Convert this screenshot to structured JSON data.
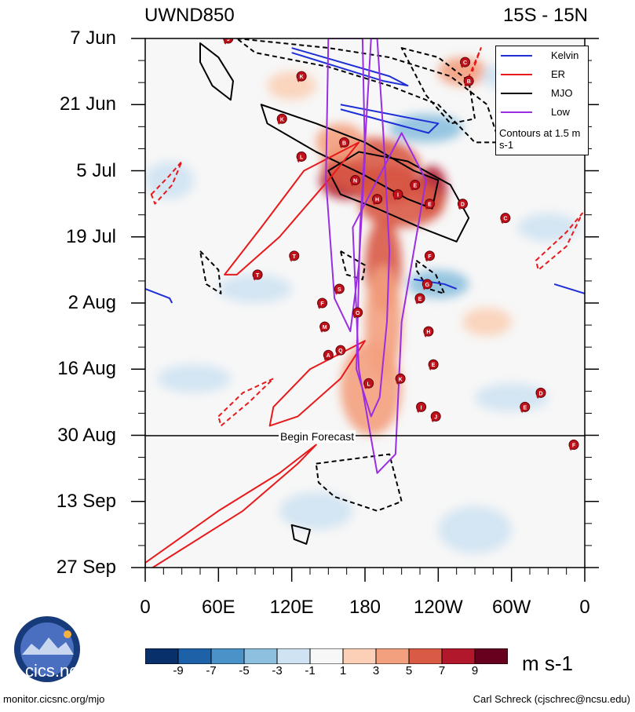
{
  "chart_data": {
    "type": "heatmap",
    "title_left": "UWND850",
    "title_right": "15S - 15N",
    "variable": "850-hPa zonal wind anomaly",
    "units": "m s-1",
    "x_axis": {
      "labels": [
        "0",
        "60E",
        "120E",
        "180",
        "120W",
        "60W",
        "0"
      ],
      "range_deg": [
        0,
        360
      ]
    },
    "y_axis": {
      "labels": [
        "7 Jun",
        "21 Jun",
        "5 Jul",
        "19 Jul",
        "2 Aug",
        "16 Aug",
        "30 Aug",
        "13 Sep",
        "27 Sep"
      ],
      "day_offsets": [
        0,
        14,
        28,
        42,
        56,
        70,
        84,
        98,
        112
      ]
    },
    "forecast_start": "30 Aug",
    "forecast_label": "Begin Forecast",
    "colorbar": {
      "ticks": [
        "-9",
        "-7",
        "-5",
        "-3",
        "-1",
        "1",
        "3",
        "5",
        "7",
        "9"
      ],
      "colors": [
        "#08306b",
        "#1d62a8",
        "#4a93c8",
        "#8cc0de",
        "#cfe3f2",
        "#f7f7f7",
        "#fbd0b7",
        "#f3a07e",
        "#d95a45",
        "#b2182b",
        "#67001f"
      ]
    },
    "legend": [
      {
        "name": "Kelvin",
        "color": "#1f2fd6"
      },
      {
        "name": "ER",
        "color": "#e8191b"
      },
      {
        "name": "MJO",
        "color": "#000000"
      },
      {
        "name": "Low",
        "color": "#9a2ee0"
      }
    ],
    "contour_note": "Contours at 1.5 m s-1",
    "anomaly_blobs": [
      {
        "lon": 165,
        "day": 30,
        "value": 8.5,
        "rlon": 22,
        "rday": 4
      },
      {
        "lon": 200,
        "day": 31,
        "value": 7.5,
        "rlon": 25,
        "rday": 4
      },
      {
        "lon": 235,
        "day": 32,
        "value": 8.0,
        "rlon": 12,
        "rday": 5
      },
      {
        "lon": 185,
        "day": 27,
        "value": 5.5,
        "rlon": 40,
        "rday": 6
      },
      {
        "lon": 210,
        "day": 35,
        "value": 6.0,
        "rlon": 35,
        "rday": 5
      },
      {
        "lon": 195,
        "day": 48,
        "value": 5.0,
        "rlon": 15,
        "rday": 10
      },
      {
        "lon": 195,
        "day": 60,
        "value": 4.0,
        "rlon": 15,
        "rday": 12
      },
      {
        "lon": 185,
        "day": 74,
        "value": 4.0,
        "rlon": 25,
        "rday": 10
      },
      {
        "lon": 160,
        "day": 22,
        "value": 3.0,
        "rlon": 20,
        "rday": 4
      },
      {
        "lon": 260,
        "day": 7,
        "value": 3.0,
        "rlon": 20,
        "rday": 3
      },
      {
        "lon": 120,
        "day": 10,
        "value": 2.0,
        "rlon": 20,
        "rday": 3
      },
      {
        "lon": 280,
        "day": 60,
        "value": 2.0,
        "rlon": 20,
        "rday": 3
      },
      {
        "lon": 230,
        "day": 19,
        "value": -4.0,
        "rlon": 30,
        "rday": 3
      },
      {
        "lon": 20,
        "day": 30,
        "value": -3.0,
        "rlon": 20,
        "rday": 4
      },
      {
        "lon": 330,
        "day": 40,
        "value": -3.0,
        "rlon": 25,
        "rday": 3
      },
      {
        "lon": 90,
        "day": 53,
        "value": -3.0,
        "rlon": 30,
        "rday": 3
      },
      {
        "lon": 240,
        "day": 52,
        "value": -3.5,
        "rlon": 25,
        "rday": 3
      },
      {
        "lon": 300,
        "day": 8,
        "value": -2.0,
        "rlon": 25,
        "rday": 3
      },
      {
        "lon": 40,
        "day": 72,
        "value": -2.0,
        "rlon": 30,
        "rday": 3
      },
      {
        "lon": 300,
        "day": 76,
        "value": -2.0,
        "rlon": 30,
        "rday": 3
      },
      {
        "lon": 140,
        "day": 100,
        "value": -2.0,
        "rlon": 30,
        "rday": 4
      },
      {
        "lon": 270,
        "day": 104,
        "value": -1.5,
        "rlon": 30,
        "rday": 5
      }
    ],
    "contours": [
      {
        "filter": "MJO",
        "style": "solid",
        "points": [
          [
            150,
            28
          ],
          [
            175,
            24
          ],
          [
            215,
            26
          ],
          [
            250,
            31
          ],
          [
            265,
            38
          ],
          [
            255,
            43
          ],
          [
            225,
            40
          ],
          [
            190,
            36
          ],
          [
            160,
            33
          ]
        ]
      },
      {
        "filter": "MJO",
        "style": "solid",
        "points": [
          [
            95,
            14
          ],
          [
            140,
            18
          ],
          [
            180,
            22
          ],
          [
            220,
            28
          ],
          [
            240,
            30
          ],
          [
            235,
            36
          ],
          [
            215,
            34
          ],
          [
            180,
            29
          ],
          [
            140,
            24
          ],
          [
            100,
            18
          ]
        ]
      },
      {
        "filter": "MJO",
        "style": "solid",
        "points": [
          [
            45,
            1
          ],
          [
            60,
            4
          ],
          [
            72,
            9
          ],
          [
            70,
            13
          ],
          [
            55,
            10
          ],
          [
            45,
            5
          ]
        ]
      },
      {
        "filter": "MJO",
        "style": "dashed",
        "points": [
          [
            75,
            0
          ],
          [
            150,
            2
          ],
          [
            200,
            4
          ],
          [
            250,
            8
          ],
          [
            280,
            14
          ],
          [
            290,
            22
          ],
          [
            270,
            22
          ],
          [
            240,
            14
          ],
          [
            200,
            10
          ],
          [
            150,
            6
          ],
          [
            90,
            3
          ]
        ]
      },
      {
        "filter": "MJO",
        "style": "dashed",
        "points": [
          [
            210,
            2
          ],
          [
            240,
            4
          ],
          [
            265,
            9
          ],
          [
            270,
            17
          ],
          [
            250,
            18
          ],
          [
            230,
            12
          ]
        ]
      },
      {
        "filter": "MJO",
        "style": "dashed",
        "points": [
          [
            45,
            45
          ],
          [
            60,
            49
          ],
          [
            62,
            54
          ],
          [
            50,
            52
          ]
        ]
      },
      {
        "filter": "MJO",
        "style": "dashed",
        "points": [
          [
            160,
            45
          ],
          [
            180,
            48
          ],
          [
            178,
            51
          ],
          [
            165,
            50
          ]
        ]
      },
      {
        "filter": "MJO",
        "style": "dashed",
        "points": [
          [
            222,
            47
          ],
          [
            238,
            50
          ],
          [
            245,
            54
          ],
          [
            232,
            53
          ],
          [
            222,
            49
          ]
        ]
      },
      {
        "filter": "MJO",
        "style": "dashed",
        "points": [
          [
            140,
            90
          ],
          [
            200,
            88
          ],
          [
            210,
            98
          ],
          [
            190,
            100
          ],
          [
            155,
            97
          ],
          [
            142,
            94
          ]
        ]
      },
      {
        "filter": "MJO",
        "style": "solid",
        "points": [
          [
            120,
            103
          ],
          [
            135,
            104
          ],
          [
            132,
            107
          ],
          [
            122,
            106
          ]
        ]
      },
      {
        "filter": "ER",
        "style": "solid",
        "points": [
          [
            65,
            50
          ],
          [
            95,
            40
          ],
          [
            130,
            28
          ],
          [
            175,
            22
          ],
          [
            150,
            30
          ],
          [
            110,
            42
          ],
          [
            75,
            50
          ]
        ]
      },
      {
        "filter": "ER",
        "style": "solid",
        "points": [
          [
            105,
            78
          ],
          [
            135,
            70
          ],
          [
            180,
            64
          ],
          [
            160,
            72
          ],
          [
            125,
            80
          ],
          [
            102,
            82
          ]
        ]
      },
      {
        "filter": "ER",
        "style": "solid",
        "points": [
          [
            0,
            111
          ],
          [
            60,
            100
          ],
          [
            110,
            92
          ],
          [
            140,
            86
          ],
          [
            125,
            90
          ],
          [
            80,
            100
          ],
          [
            0,
            113
          ]
        ]
      },
      {
        "filter": "ER",
        "style": "dashed",
        "points": [
          [
            5,
            33
          ],
          [
            20,
            29
          ],
          [
            30,
            26
          ],
          [
            22,
            31
          ],
          [
            8,
            35
          ]
        ]
      },
      {
        "filter": "ER",
        "style": "dashed",
        "points": [
          [
            60,
            80
          ],
          [
            80,
            75
          ],
          [
            105,
            72
          ],
          [
            85,
            77
          ],
          [
            62,
            82
          ]
        ]
      },
      {
        "filter": "ER",
        "style": "dashed",
        "points": [
          [
            320,
            47
          ],
          [
            345,
            41
          ],
          [
            358,
            37
          ],
          [
            345,
            44
          ],
          [
            322,
            49
          ]
        ]
      },
      {
        "filter": "ER",
        "style": "dashed",
        "points": [
          [
            262,
            10
          ],
          [
            275,
            2
          ],
          [
            268,
            7
          ]
        ]
      },
      {
        "filter": "Kelvin",
        "style": "solid",
        "points": [
          [
            120,
            2
          ],
          [
            200,
            8
          ],
          [
            215,
            10
          ],
          [
            195,
            9
          ],
          [
            120,
            3
          ]
        ]
      },
      {
        "filter": "Kelvin",
        "style": "solid",
        "points": [
          [
            160,
            14
          ],
          [
            240,
            18
          ],
          [
            232,
            20
          ],
          [
            160,
            15
          ]
        ]
      },
      {
        "filter": "Kelvin",
        "style": "solid",
        "points": [
          [
            0,
            53
          ],
          [
            20,
            55
          ],
          [
            22,
            56
          ]
        ]
      },
      {
        "filter": "Kelvin",
        "style": "solid",
        "points": [
          [
            335,
            52
          ],
          [
            360,
            54
          ]
        ]
      },
      {
        "filter": "Kelvin",
        "style": "solid",
        "points": [
          [
            220,
            51
          ],
          [
            245,
            52
          ],
          [
            255,
            53
          ]
        ]
      },
      {
        "filter": "Low",
        "style": "solid",
        "points": [
          [
            185,
            0
          ],
          [
            176,
            40
          ],
          [
            173,
            70
          ],
          [
            185,
            80
          ],
          [
            192,
            76
          ],
          [
            198,
            60
          ],
          [
            200,
            45
          ],
          [
            195,
            20
          ],
          [
            190,
            0
          ]
        ]
      },
      {
        "filter": "Low",
        "style": "solid",
        "points": [
          [
            150,
            0
          ],
          [
            148,
            30
          ],
          [
            155,
            55
          ],
          [
            168,
            62
          ],
          [
            175,
            48
          ],
          [
            180,
            25
          ],
          [
            178,
            0
          ]
        ]
      },
      {
        "filter": "Low",
        "style": "solid",
        "points": [
          [
            170,
            40
          ],
          [
            175,
            70
          ],
          [
            190,
            92
          ],
          [
            205,
            88
          ],
          [
            210,
            60
          ],
          [
            230,
            30
          ],
          [
            210,
            20
          ],
          [
            190,
            30
          ]
        ]
      }
    ],
    "storms": [
      {
        "lon": 68,
        "day": 0,
        "label": "J"
      },
      {
        "lon": 112,
        "day": 17,
        "label": "K"
      },
      {
        "lon": 128,
        "day": 8,
        "label": "K"
      },
      {
        "lon": 163,
        "day": 22,
        "label": "B"
      },
      {
        "lon": 172,
        "day": 30,
        "label": "N"
      },
      {
        "lon": 128,
        "day": 25,
        "label": "L"
      },
      {
        "lon": 190,
        "day": 34,
        "label": "H"
      },
      {
        "lon": 207,
        "day": 33,
        "label": "I"
      },
      {
        "lon": 221,
        "day": 31,
        "label": "E"
      },
      {
        "lon": 233,
        "day": 35,
        "label": "E"
      },
      {
        "lon": 260,
        "day": 35,
        "label": "D"
      },
      {
        "lon": 262,
        "day": 5,
        "label": "C"
      },
      {
        "lon": 265,
        "day": 9,
        "label": "B"
      },
      {
        "lon": 295,
        "day": 38,
        "label": "C"
      },
      {
        "lon": 122,
        "day": 46,
        "label": "T"
      },
      {
        "lon": 92,
        "day": 50,
        "label": "T"
      },
      {
        "lon": 159,
        "day": 53,
        "label": "S"
      },
      {
        "lon": 145,
        "day": 56,
        "label": "F"
      },
      {
        "lon": 174,
        "day": 58,
        "label": "O"
      },
      {
        "lon": 147,
        "day": 61,
        "label": "M"
      },
      {
        "lon": 160,
        "day": 66,
        "label": "Q"
      },
      {
        "lon": 150,
        "day": 67,
        "label": "A"
      },
      {
        "lon": 225,
        "day": 55,
        "label": "E"
      },
      {
        "lon": 231,
        "day": 52,
        "label": "G"
      },
      {
        "lon": 233,
        "day": 46,
        "label": "F"
      },
      {
        "lon": 232,
        "day": 62,
        "label": "H"
      },
      {
        "lon": 236,
        "day": 69,
        "label": "E"
      },
      {
        "lon": 183,
        "day": 73,
        "label": "L"
      },
      {
        "lon": 209,
        "day": 72,
        "label": "K"
      },
      {
        "lon": 226,
        "day": 78,
        "label": "I"
      },
      {
        "lon": 238,
        "day": 80,
        "label": "J"
      },
      {
        "lon": 324,
        "day": 75,
        "label": "D"
      },
      {
        "lon": 311,
        "day": 78,
        "label": "E"
      },
      {
        "lon": 351,
        "day": 86,
        "label": "F"
      }
    ]
  },
  "footer": {
    "url": "monitor.cicsnc.org/mjo",
    "credit": "Carl Schreck (cjschrec@ncsu.edu)",
    "logo_text": "cics.nc"
  }
}
